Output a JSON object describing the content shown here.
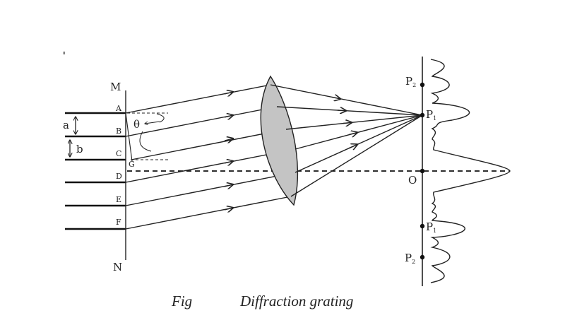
{
  "labels": {
    "M": "M",
    "N": "N",
    "A": "A",
    "B": "B",
    "C": "C",
    "D": "D",
    "E": "E",
    "F": "F",
    "G": "G",
    "a": "a",
    "b": "b",
    "theta": "θ",
    "O": "O",
    "P": "P",
    "P1_sub": "1",
    "P2_sub": "2"
  },
  "caption": {
    "fig": "Fig",
    "title": "Diffraction grating"
  },
  "colors": {
    "ink": "#222222",
    "lens_fill": "#c4c4c4",
    "background": "#ffffff"
  }
}
